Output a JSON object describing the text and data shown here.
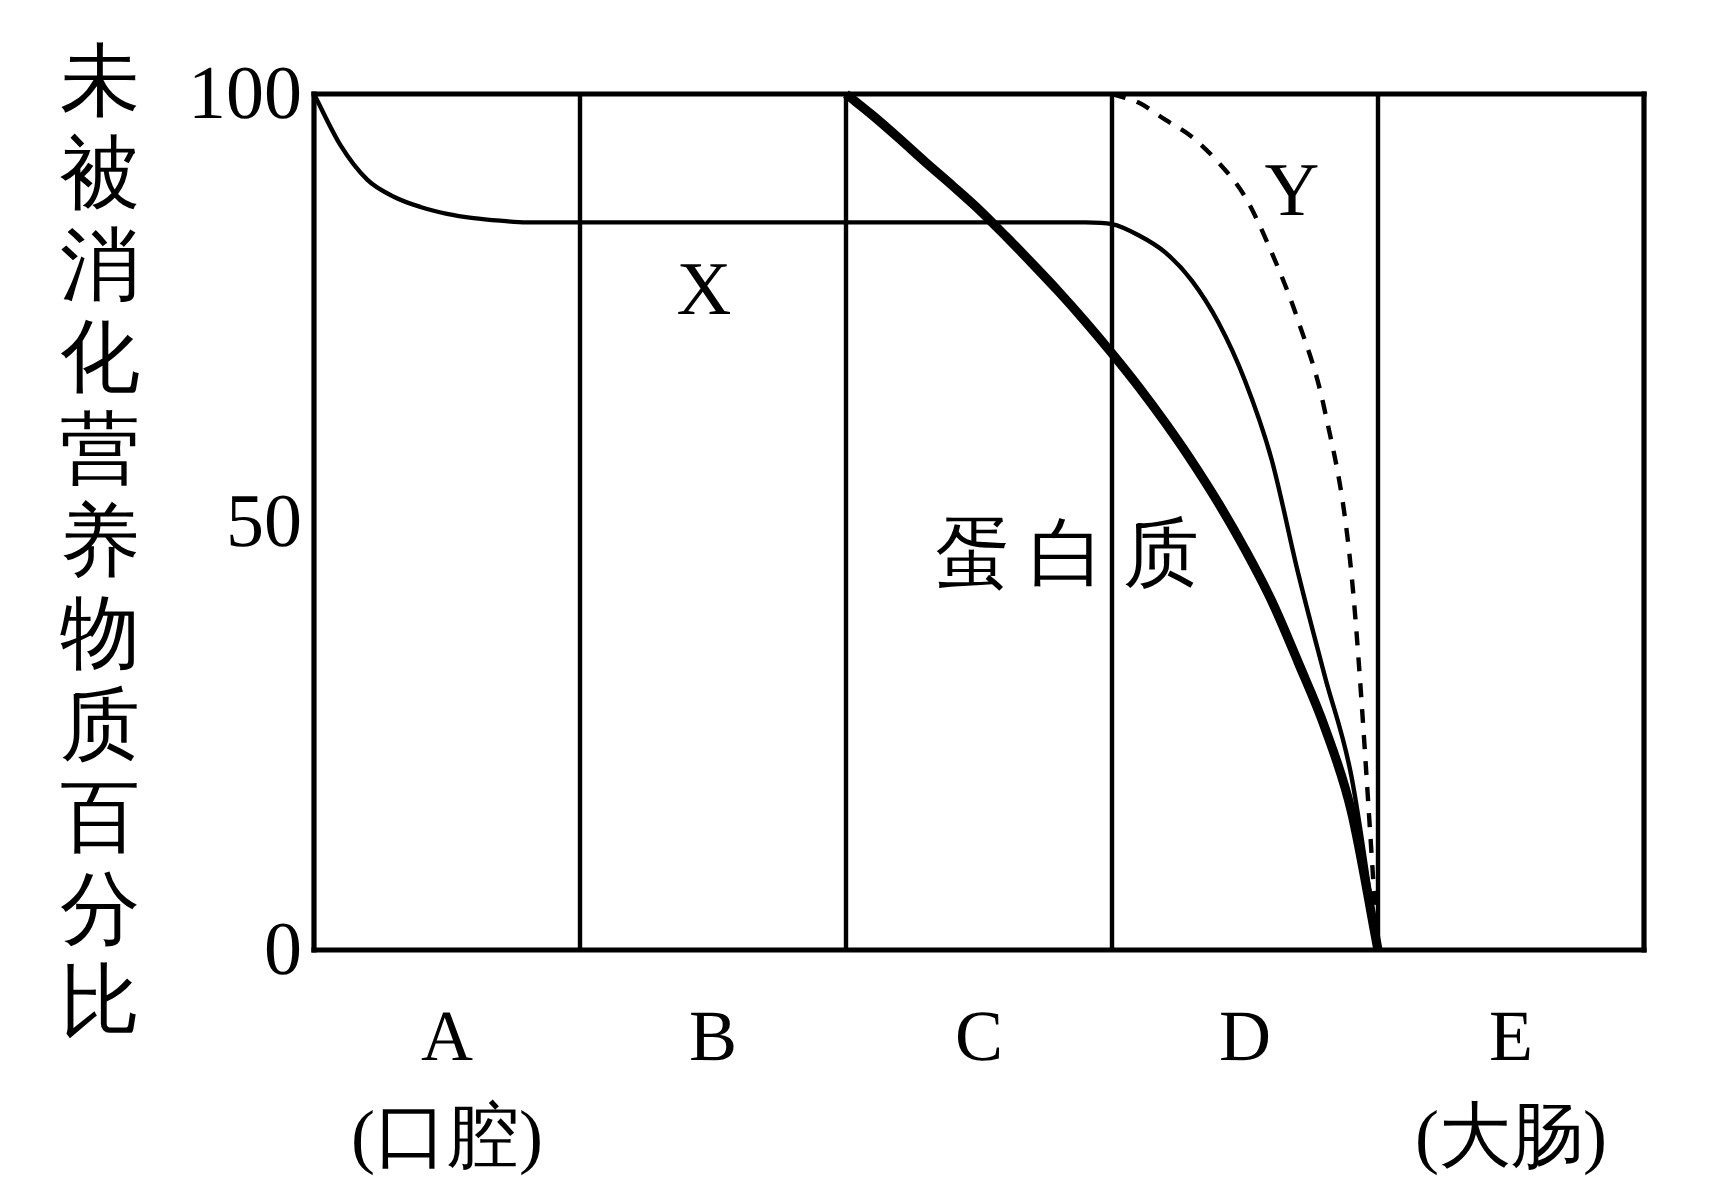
{
  "chart_data": {
    "type": "line",
    "ylabel": "未被消化营养物质百分比",
    "categories": [
      null,
      null,
      null,
      null,
      null,
      "A\n(口腔)",
      null,
      null,
      null,
      null,
      null,
      null,
      null,
      null,
      null,
      "B",
      null,
      null,
      null,
      null,
      null,
      null,
      null,
      null,
      null,
      "C",
      null,
      null,
      null,
      null,
      null,
      null,
      null,
      null,
      null,
      "D",
      null,
      null,
      null,
      null,
      null,
      null,
      null,
      null,
      null,
      "E\n(大肠)",
      null,
      null,
      null,
      null,
      null
    ],
    "ylim": [
      0,
      100
    ],
    "yticks": [
      0,
      50,
      100
    ],
    "series": [
      {
        "name": "X",
        "color": "#000000",
        "line_style": "solid",
        "values": [
          100,
          94,
          90,
          88,
          86.8,
          86,
          85.5,
          85.2,
          85,
          85,
          85,
          85,
          85,
          85,
          85,
          85,
          85,
          85,
          85,
          85,
          85,
          85,
          85,
          85,
          85,
          85,
          85,
          85,
          85,
          85,
          84.8,
          83.5,
          81.5,
          78.2,
          73.3,
          66.5,
          57.3,
          44,
          32,
          20.3,
          0,
          null,
          null,
          null,
          null,
          null,
          null,
          null,
          null,
          null,
          null
        ]
      },
      {
        "name": "蛋白质",
        "color": "#000000",
        "line_style": "solid",
        "values": [
          null,
          null,
          null,
          null,
          null,
          null,
          null,
          null,
          null,
          null,
          null,
          null,
          null,
          null,
          null,
          null,
          null,
          null,
          null,
          null,
          100,
          97.5,
          94.8,
          92,
          89.3,
          86.5,
          83.4,
          80.2,
          76.9,
          73.4,
          69.7,
          65.8,
          61.6,
          57.1,
          52.2,
          46.8,
          40.8,
          33.6,
          26,
          16.2,
          0,
          null,
          null,
          null,
          null,
          null,
          null,
          null,
          null,
          null,
          null
        ]
      },
      {
        "name": "Y",
        "color": "#000000",
        "line_style": "dashed",
        "values": [
          null,
          null,
          null,
          null,
          null,
          null,
          null,
          null,
          null,
          null,
          null,
          null,
          null,
          null,
          null,
          null,
          null,
          null,
          null,
          null,
          null,
          null,
          null,
          null,
          null,
          null,
          null,
          null,
          null,
          null,
          100,
          99,
          97,
          95,
          92,
          88,
          81.5,
          73.5,
          63,
          44,
          0,
          null,
          null,
          null,
          null,
          null,
          null,
          null,
          null,
          null,
          null
        ]
      }
    ]
  }
}
